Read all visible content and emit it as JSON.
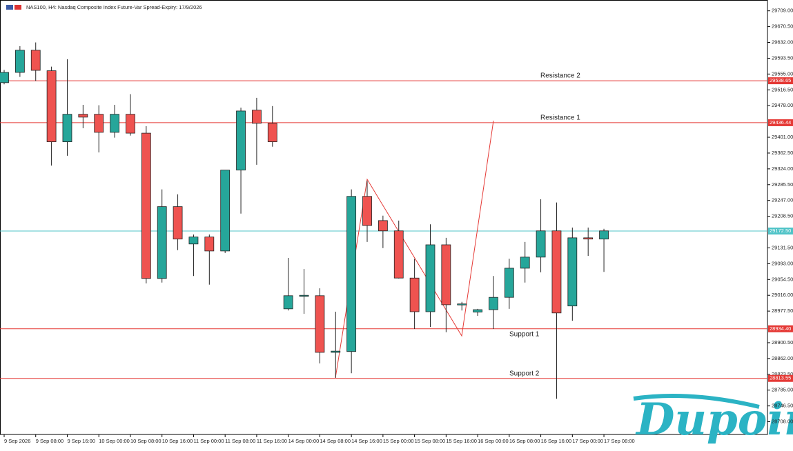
{
  "chart_data": {
    "type": "candlestick",
    "title": "NAS100, H4:  Nasdaq Composite Index Future-Var Spread-Expiry: 17/9/2026",
    "categories": [
      "9 Sep 2026",
      null,
      "9 Sep 08:00",
      null,
      "9 Sep 16:00",
      null,
      "10 Sep 00:00",
      null,
      "10 Sep 08:00",
      null,
      "10 Sep 16:00",
      null,
      "11 Sep 00:00",
      null,
      "11 Sep 08:00",
      null,
      "11 Sep 16:00",
      null,
      "14 Sep 00:00",
      null,
      "14 Sep 08:00",
      null,
      "14 Sep 16:00",
      null,
      "15 Sep 00:00",
      null,
      "15 Sep 08:00",
      null,
      "15 Sep 16:00",
      null,
      "16 Sep 00:00",
      null,
      "16 Sep 08:00",
      null,
      "16 Sep 16:00",
      null,
      "17 Sep 00:00",
      null,
      "17 Sep 08:00"
    ],
    "open": [
      29534,
      29559,
      29613,
      29563,
      29390,
      29457,
      29457,
      29413,
      29457,
      29411,
      29057,
      29232,
      29141,
      29158,
      29124,
      29321,
      29467,
      29435,
      28983,
      29015,
      29015,
      28877,
      28879,
      29257,
      29198,
      29173,
      29058,
      28976,
      29139,
      28993,
      28975,
      28981,
      29011,
      29082,
      29109,
      29173,
      28990,
      29156,
      29153
    ],
    "high": [
      29565,
      29623,
      29632,
      29573,
      29591,
      29480,
      29479,
      29480,
      29506,
      29428,
      29274,
      29262,
      29164,
      29164,
      29321,
      29473,
      29497,
      29477,
      29107,
      29080,
      29033,
      28976,
      29274,
      29295,
      29210,
      29198,
      29105,
      29189,
      29156,
      29000,
      28983,
      29063,
      29105,
      29146,
      29250,
      29242,
      29181,
      29181,
      29178
    ],
    "low": [
      29530,
      29548,
      29538,
      29332,
      29356,
      29423,
      29364,
      29400,
      29405,
      29045,
      29047,
      29126,
      29063,
      29042,
      29119,
      29215,
      29334,
      29378,
      28979,
      28971,
      28850,
      28815,
      28826,
      29146,
      29131,
      29057,
      28934,
      28939,
      28926,
      28979,
      28966,
      28934,
      28983,
      29047,
      29072,
      28764,
      28954,
      29112,
      29073
    ],
    "close": [
      29559,
      29613,
      29564,
      29390,
      29457,
      29450,
      29413,
      29457,
      29411,
      29057,
      29232,
      29153,
      29158,
      29124,
      29321,
      29465,
      29435,
      29390,
      29015,
      29016,
      28877,
      28880,
      29257,
      29186,
      29173,
      29058,
      28976,
      29139,
      28993,
      28995,
      28981,
      29011,
      29082,
      29109,
      29173,
      28973,
      29156,
      29153,
      29173
    ],
    "up_color": "#26a69a",
    "down_color": "#ef5350",
    "ylim": [
      28677,
      29732
    ],
    "yticks": [
      {
        "value": 29709,
        "label": "29709.00"
      },
      {
        "value": 29670.5,
        "label": "29670.50"
      },
      {
        "value": 29632,
        "label": "29632.00"
      },
      {
        "value": 29593.5,
        "label": "29593.50"
      },
      {
        "value": 29555,
        "label": "29555.00"
      },
      {
        "value": 29516.5,
        "label": "29516.50"
      },
      {
        "value": 29478,
        "label": "29478.00"
      },
      {
        "value": 29401,
        "label": "29401.00"
      },
      {
        "value": 29362.5,
        "label": "29362.50"
      },
      {
        "value": 29324,
        "label": "29324.00"
      },
      {
        "value": 29285.5,
        "label": "29285.50"
      },
      {
        "value": 29247,
        "label": "29247.00"
      },
      {
        "value": 29208.5,
        "label": "29208.50"
      },
      {
        "value": 29131.5,
        "label": "29131.50"
      },
      {
        "value": 29093,
        "label": "29093.00"
      },
      {
        "value": 29054.5,
        "label": "29054.50"
      },
      {
        "value": 29016,
        "label": "29016.00"
      },
      {
        "value": 28977.5,
        "label": "28977.50"
      },
      {
        "value": 28900.5,
        "label": "28900.50"
      },
      {
        "value": 28862,
        "label": "28862.00"
      },
      {
        "value": 28823.5,
        "label": "28823.50"
      },
      {
        "value": 28785,
        "label": "28785.00"
      },
      {
        "value": 28746.5,
        "label": "28746.50"
      },
      {
        "value": 28708,
        "label": "28708.00"
      }
    ],
    "levels": {
      "names": [
        "Resistance 2",
        "Resistance 1",
        "Support 1",
        "Support 2"
      ],
      "values": [
        29538.65,
        29436.44,
        28934.4,
        28813.55
      ],
      "value_labels": [
        "29538.65",
        "29436.44",
        "28934.40",
        "28813.55"
      ],
      "color": "#e53935"
    },
    "current_price": {
      "value": 29172.5,
      "label": "29172.50",
      "color": "#4fc3c7"
    },
    "watermark": "Dupoin"
  }
}
